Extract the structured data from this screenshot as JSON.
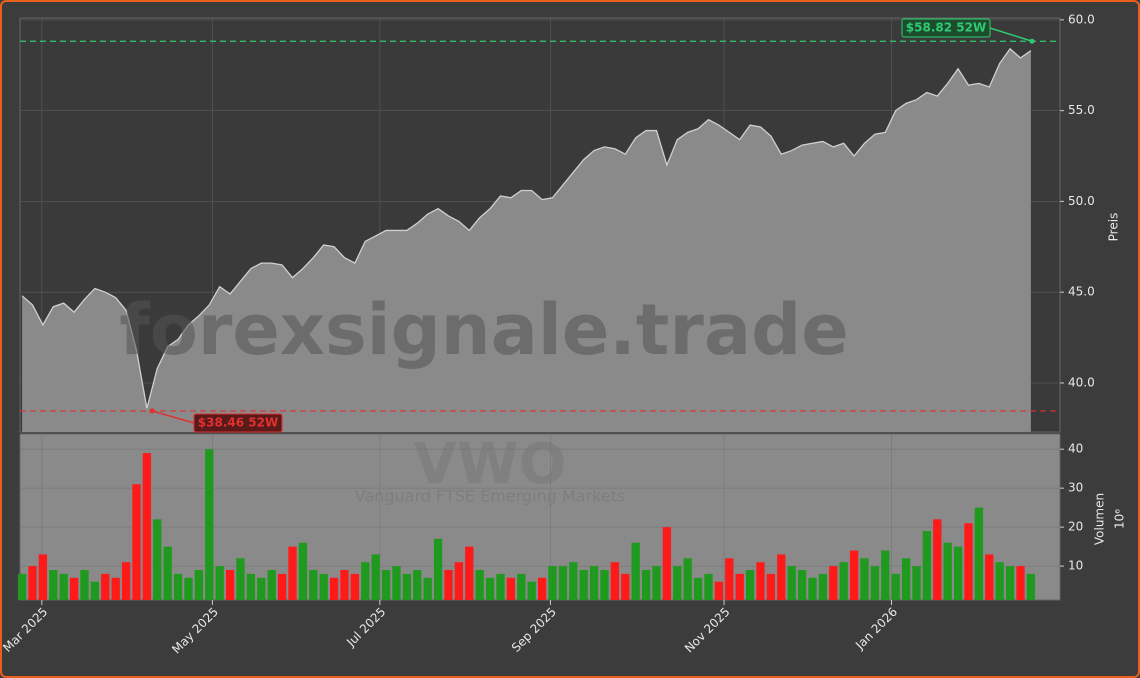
{
  "chart_data": [
    {
      "type": "area",
      "watermark": "forexsignale.trade",
      "ylabel": "Preis",
      "values": [
        44.8,
        44.3,
        43.2,
        44.2,
        44.4,
        43.9,
        44.6,
        45.2,
        45.0,
        44.7,
        44.0,
        41.8,
        38.6,
        40.8,
        42.0,
        42.4,
        43.2,
        43.7,
        44.3,
        45.3,
        44.9,
        45.6,
        46.3,
        46.6,
        46.6,
        46.5,
        45.8,
        46.3,
        46.9,
        47.6,
        47.5,
        46.9,
        46.6,
        47.8,
        48.1,
        48.4,
        48.4,
        48.4,
        48.8,
        49.3,
        49.6,
        49.2,
        48.9,
        48.4,
        49.1,
        49.6,
        50.3,
        50.2,
        50.6,
        50.6,
        50.1,
        50.2,
        50.9,
        51.6,
        52.3,
        52.8,
        53.0,
        52.9,
        52.6,
        53.5,
        53.9,
        53.9,
        52.0,
        53.4,
        53.8,
        54.0,
        54.5,
        54.2,
        53.8,
        53.4,
        54.2,
        54.1,
        53.6,
        52.6,
        52.8,
        53.1,
        53.2,
        53.3,
        53.0,
        53.2,
        52.5,
        53.2,
        53.7,
        53.8,
        55.0,
        55.4,
        55.6,
        56.0,
        55.8,
        56.5,
        57.3,
        56.4,
        56.5,
        56.3,
        57.6,
        58.4,
        57.9,
        58.3
      ],
      "color": "#8a8a8a",
      "line_color": "#d0d0d0",
      "xlim": [
        -0.2,
        99.8
      ],
      "ylim": [
        37.3,
        60.1
      ],
      "yticks": [
        {
          "value": 40,
          "label": "40.0"
        },
        {
          "value": 45,
          "label": "45.0"
        },
        {
          "value": 50,
          "label": "50.0"
        },
        {
          "value": 55,
          "label": "55.0"
        },
        {
          "value": 60,
          "label": "60.0"
        }
      ],
      "grid": true,
      "high": {
        "value": 58.82,
        "label": "$58.82 52W",
        "color": "#2ecc71"
      },
      "low": {
        "value": 38.46,
        "label": "$38.46 52W",
        "color": "#e03030"
      }
    },
    {
      "type": "bar",
      "watermark": "VWO",
      "subtitle": "Vanguard FTSE Emerging Markets",
      "ylabel": "Volumen",
      "yunit": "10⁶",
      "values": [
        8,
        10,
        13,
        9,
        8,
        7,
        9,
        6,
        8,
        7,
        11,
        31,
        39,
        22,
        15,
        8,
        7,
        9,
        40,
        10,
        9,
        12,
        8,
        7,
        9,
        8,
        15,
        16,
        9,
        8,
        7,
        9,
        8,
        11,
        13,
        9,
        10,
        8,
        9,
        7,
        17,
        9,
        11,
        15,
        9,
        7,
        8,
        7,
        8,
        6,
        7,
        10,
        10,
        11,
        9,
        10,
        9,
        11,
        8,
        16,
        9,
        10,
        20,
        10,
        12,
        7,
        8,
        6,
        12,
        8,
        9,
        11,
        8,
        13,
        10,
        9,
        7,
        8,
        10,
        11,
        14,
        12,
        10,
        14,
        8,
        12,
        10,
        19,
        22,
        16,
        15,
        21,
        25,
        13,
        11,
        10,
        10,
        8
      ],
      "up_color": "#1f9a1f",
      "down_color": "#ff1a1a",
      "xlim": [
        -0.2,
        99.8
      ],
      "ylim": [
        1.3,
        43.9
      ],
      "yticks": [
        10,
        20,
        30,
        40
      ],
      "xticks": [
        {
          "value": 1.9,
          "label": "Mar 2025"
        },
        {
          "value": 18.3,
          "label": "May 2025"
        },
        {
          "value": 34.4,
          "label": "Jul 2025"
        },
        {
          "value": 50.8,
          "label": "Sep 2025"
        },
        {
          "value": 67.5,
          "label": "Nov 2025"
        },
        {
          "value": 83.6,
          "label": "Jan 2026"
        }
      ]
    }
  ]
}
